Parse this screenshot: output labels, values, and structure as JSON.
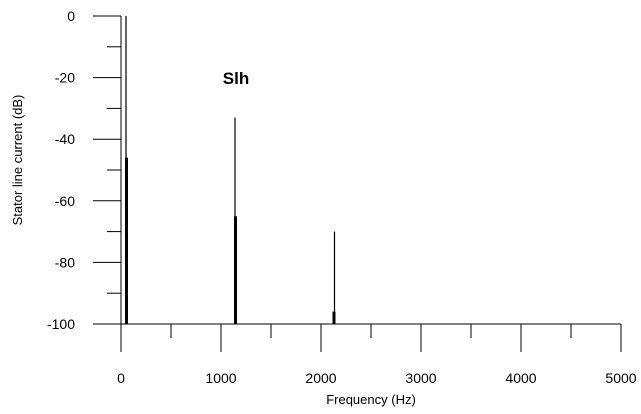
{
  "chart_data": {
    "type": "line",
    "title": "",
    "xlabel": "Frequency (Hz)",
    "ylabel": "Stator line current (dB)",
    "xlim": [
      0,
      5000
    ],
    "ylim": [
      -100,
      0
    ],
    "xticks": [
      "0",
      "1000",
      "2000",
      "3000",
      "4000",
      "5000"
    ],
    "yticks": [
      "0",
      "-20",
      "-40",
      "-60",
      "-80",
      "-100"
    ],
    "grid": false,
    "legend": "none",
    "annotations": [
      {
        "text": "Slh",
        "x": 1150,
        "y": -22
      }
    ],
    "spikes": [
      {
        "x": 50,
        "y": 0,
        "width": "thin"
      },
      {
        "x": 55,
        "y": -46,
        "width": "thick"
      },
      {
        "x": 1140,
        "y": -33,
        "width": "thin"
      },
      {
        "x": 1145,
        "y": -65,
        "width": "thick"
      },
      {
        "x": 2135,
        "y": -70,
        "width": "thin"
      },
      {
        "x": 2130,
        "y": -96,
        "width": "thick"
      }
    ],
    "colors": {
      "line": "#000000",
      "axis": "#000000"
    }
  }
}
